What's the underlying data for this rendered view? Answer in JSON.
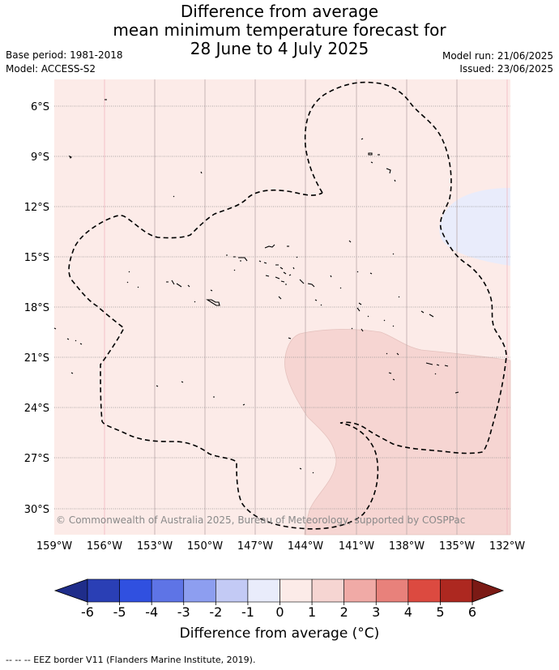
{
  "title_lines": [
    "Difference from average",
    "mean minimum temperature forecast for",
    "28 June to 4 July 2025"
  ],
  "base_period": "Base period: 1981-2018",
  "model": "Model: ACCESS-S2",
  "model_run": "Model run: 21/06/2025",
  "issued": "Issued: 23/06/2025",
  "copyright": "© Commonwealth of Australia 2025, Bureau of Meteorology, supported by COSPPac",
  "footer": "-- -- -- EEZ border V11 (Flanders Marine Institute, 2019).",
  "colorbar": {
    "title": "Difference from average (°C)",
    "ticks": [
      "-6",
      "-5",
      "-4",
      "-3",
      "-2",
      "-1",
      "0",
      "1",
      "2",
      "3",
      "4",
      "5",
      "6"
    ],
    "colors": [
      "#1f2d8a",
      "#2a3fb5",
      "#3050e0",
      "#5e74e6",
      "#8d9ef0",
      "#c3caf5",
      "#e9ecfb",
      "#fcebe8",
      "#f6d5d2",
      "#f0aaa6",
      "#e8817b",
      "#dc4a40",
      "#ad2820",
      "#7b1a15"
    ]
  },
  "map": {
    "lon_labels": [
      "159°W",
      "156°W",
      "153°W",
      "150°W",
      "147°W",
      "144°W",
      "141°W",
      "138°W",
      "135°W",
      "132°W"
    ],
    "lat_labels": [
      "6°S",
      "9°S",
      "12°S",
      "15°S",
      "18°S",
      "21°S",
      "24°S",
      "27°S",
      "30°S"
    ],
    "background_anomaly_color": "#fcebe8",
    "warm_region_color": "#f6d5d2",
    "cool_region_color": "#e9ecfb"
  }
}
